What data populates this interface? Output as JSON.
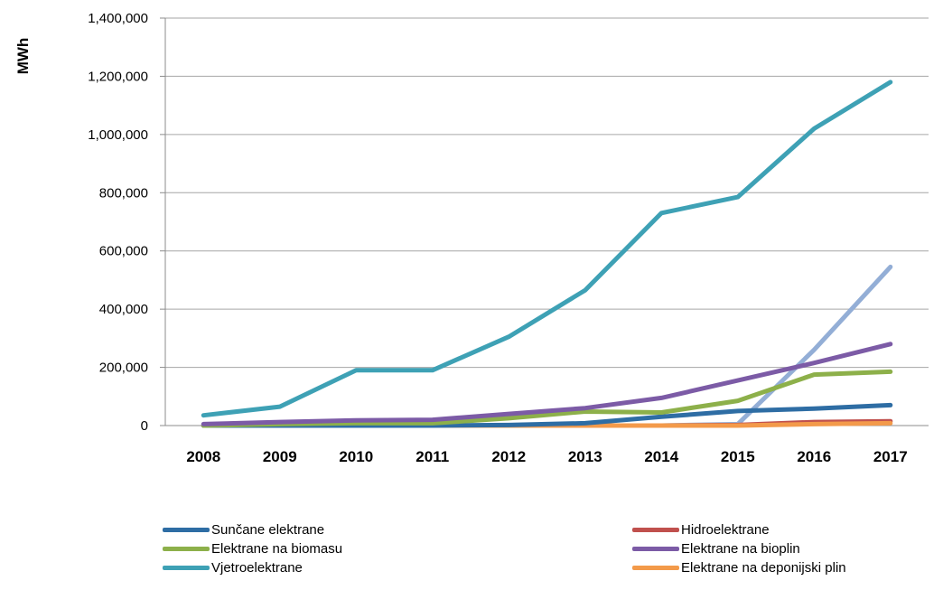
{
  "chart_data": {
    "type": "line",
    "title": "",
    "xlabel": "",
    "ylabel": "MWh",
    "ylim": [
      0,
      1400000
    ],
    "yticks": [
      0,
      200000,
      400000,
      600000,
      800000,
      1000000,
      1200000,
      1400000
    ],
    "ytick_labels": [
      "0",
      "200,000",
      "400,000",
      "600,000",
      "800,000",
      "1,000,000",
      "1,200,000",
      "1,400,000"
    ],
    "categories": [
      "2008",
      "2009",
      "2010",
      "2011",
      "2012",
      "2013",
      "2014",
      "2015",
      "2016",
      "2017"
    ],
    "grid": true,
    "legend_position": "bottom",
    "series": [
      {
        "name": "Sunčane elektrane",
        "color": "#2e6da4",
        "values": [
          0,
          0,
          0,
          0,
          2000,
          8000,
          30000,
          50000,
          58000,
          70000
        ]
      },
      {
        "name": "Hidroelektrane",
        "color": "#c0504d",
        "values": [
          0,
          0,
          0,
          0,
          0,
          0,
          0,
          2000,
          12000,
          15000
        ]
      },
      {
        "name": "Elektrane na biomasu",
        "color": "#8db04a",
        "values": [
          0,
          5000,
          8000,
          8000,
          25000,
          48000,
          45000,
          85000,
          175000,
          185000
        ]
      },
      {
        "name": "Elektrane na bioplin",
        "color": "#7c5ba6",
        "values": [
          5000,
          12000,
          18000,
          20000,
          40000,
          60000,
          95000,
          155000,
          215000,
          280000
        ]
      },
      {
        "name": "Vjetroelektrane",
        "color": "#3ea1b5",
        "values": [
          35000,
          65000,
          190000,
          190000,
          305000,
          465000,
          730000,
          785000,
          1020000,
          1180000
        ]
      },
      {
        "name": "Elektrane na deponijski plin",
        "color": "#f39a4a",
        "values": [
          0,
          0,
          0,
          0,
          0,
          0,
          0,
          0,
          5000,
          8000
        ]
      },
      {
        "name": "",
        "color": "#93aed6",
        "values": [
          0,
          0,
          0,
          0,
          0,
          0,
          0,
          5000,
          260000,
          545000
        ]
      }
    ]
  }
}
